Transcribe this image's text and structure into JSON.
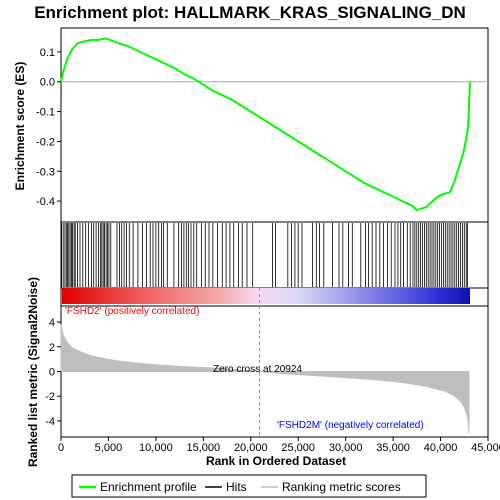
{
  "chart_data": {
    "type": "line",
    "title": "Enrichment plot: HALLMARK_KRAS_SIGNALING_DN",
    "es_panel": {
      "ylabel": "Enrichment score (ES)",
      "ylim": [
        -0.47,
        0.18
      ],
      "yticks": [
        {
          "v": 0.1,
          "label": "0.1"
        },
        {
          "v": 0.0,
          "label": "0.0"
        },
        {
          "v": -0.1,
          "label": "-0.1"
        },
        {
          "v": -0.2,
          "label": "-0.2"
        },
        {
          "v": -0.3,
          "label": "-0.3"
        },
        {
          "v": -0.4,
          "label": "-0.4"
        }
      ],
      "grid": false,
      "series_color": "#00ff00",
      "x": [
        0,
        300,
        700,
        1200,
        1800,
        2500,
        3200,
        4000,
        4700,
        5200,
        6000,
        7000,
        8000,
        9000,
        10000,
        11000,
        12000,
        13000,
        14000,
        15000,
        16000,
        17000,
        18000,
        19000,
        20000,
        21000,
        22000,
        23000,
        24000,
        25000,
        26000,
        27000,
        28000,
        29000,
        30000,
        31000,
        32000,
        33000,
        34000,
        35000,
        36000,
        37000,
        37500,
        38000,
        38500,
        39000,
        39500,
        40000,
        40500,
        41000,
        41500,
        42000,
        42400,
        42700,
        42900,
        43000,
        43100
      ],
      "y": [
        0.0,
        0.04,
        0.08,
        0.11,
        0.13,
        0.135,
        0.14,
        0.14,
        0.145,
        0.14,
        0.13,
        0.12,
        0.105,
        0.09,
        0.075,
        0.06,
        0.045,
        0.025,
        0.01,
        -0.01,
        -0.03,
        -0.045,
        -0.06,
        -0.08,
        -0.1,
        -0.12,
        -0.14,
        -0.16,
        -0.18,
        -0.2,
        -0.22,
        -0.24,
        -0.26,
        -0.28,
        -0.3,
        -0.32,
        -0.34,
        -0.355,
        -0.37,
        -0.385,
        -0.4,
        -0.415,
        -0.43,
        -0.425,
        -0.42,
        -0.405,
        -0.39,
        -0.38,
        -0.375,
        -0.37,
        -0.33,
        -0.28,
        -0.24,
        -0.19,
        -0.15,
        -0.08,
        0.0
      ]
    },
    "hits": [
      60,
      230,
      410,
      560,
      690,
      820,
      960,
      1100,
      1220,
      1380,
      1500,
      1750,
      2000,
      2300,
      2600,
      2900,
      3200,
      3450,
      3700,
      3950,
      4150,
      4300,
      4450,
      4600,
      4750,
      4900,
      5050,
      5250,
      5900,
      6150,
      6400,
      6650,
      6900,
      7200,
      7600,
      8100,
      8600,
      9000,
      9400,
      9700,
      10000,
      10300,
      10600,
      10800,
      11200,
      11900,
      12400,
      12700,
      12950,
      13200,
      13450,
      13700,
      14000,
      14300,
      14800,
      15200,
      15600,
      16000,
      16500,
      17000,
      17400,
      17800,
      18200,
      18700,
      19100,
      19600,
      20200,
      22300,
      22600,
      23900,
      24300,
      24650,
      25000,
      25400,
      26500,
      26900,
      27250,
      27700,
      28600,
      29300,
      29700,
      30300,
      30700,
      31600,
      32100,
      32400,
      32800,
      33200,
      33600,
      34000,
      34400,
      34800,
      35200,
      35500,
      35800,
      36100,
      36500,
      36800,
      37100,
      37300,
      37500,
      37700,
      37900,
      38100,
      38300,
      38500,
      38700,
      38900,
      39100,
      39300,
      39500,
      39700,
      39900,
      40100,
      40300,
      40500,
      40700,
      40900,
      41100,
      41300,
      41500,
      41700,
      41900,
      42100,
      42300,
      42500,
      42700,
      42850
    ],
    "ranked_panel": {
      "ylabel": "Ranked list metric (Signal2Noise)",
      "ylim": [
        -5.3,
        5.3
      ],
      "yticks": [
        {
          "v": 4,
          "label": "4"
        },
        {
          "v": 2,
          "label": "2"
        },
        {
          "v": 0,
          "label": "0"
        },
        {
          "v": -2,
          "label": "-2"
        },
        {
          "v": -4,
          "label": "-4"
        }
      ],
      "x": [
        0,
        200,
        600,
        1200,
        2000,
        3000,
        4500,
        6000,
        8000,
        10000,
        13000,
        16000,
        19000,
        20924,
        24000,
        28000,
        32000,
        35000,
        37000,
        38500,
        39500,
        40500,
        41300,
        41800,
        42200,
        42500,
        42700,
        42850,
        42950,
        43000
      ],
      "y": [
        3.8,
        3.0,
        2.4,
        1.9,
        1.6,
        1.3,
        1.05,
        0.85,
        0.68,
        0.55,
        0.4,
        0.28,
        0.12,
        0.0,
        -0.2,
        -0.4,
        -0.6,
        -0.8,
        -1.0,
        -1.2,
        -1.4,
        -1.6,
        -1.9,
        -2.2,
        -2.5,
        -2.9,
        -3.3,
        -3.8,
        -4.3,
        -5.0
      ],
      "fill_color": "#bebebe"
    },
    "xlabel": "Rank in Ordered Dataset",
    "xlim": [
      0,
      45000
    ],
    "xticks": [
      {
        "v": 0,
        "label": "0"
      },
      {
        "v": 5000,
        "label": "5,000"
      },
      {
        "v": 10000,
        "label": "10,000"
      },
      {
        "v": 15000,
        "label": "15,000"
      },
      {
        "v": 20000,
        "label": "20,000"
      },
      {
        "v": 25000,
        "label": "25,000"
      },
      {
        "v": 30000,
        "label": "30,000"
      },
      {
        "v": 35000,
        "label": "35,000"
      },
      {
        "v": 40000,
        "label": "40,000"
      },
      {
        "v": 45000,
        "label": "45,000"
      }
    ],
    "zero_cross": 20924,
    "total_rank": 43100,
    "annotations": {
      "positive": "'FSHD2' (positively correlated)",
      "negative": "'FSHD2M' (negatively correlated)",
      "zero_cross": "Zero cross at 20924"
    },
    "annotation_colors": {
      "positive": "#ff0000",
      "negative": "#0000ff"
    },
    "legend": {
      "placement": "bottom",
      "items": [
        {
          "label": "Enrichment profile",
          "color": "#00ff00"
        },
        {
          "label": "Hits",
          "color": "#000000"
        },
        {
          "label": "Ranking metric scores",
          "color": "#bebebe"
        }
      ]
    }
  }
}
